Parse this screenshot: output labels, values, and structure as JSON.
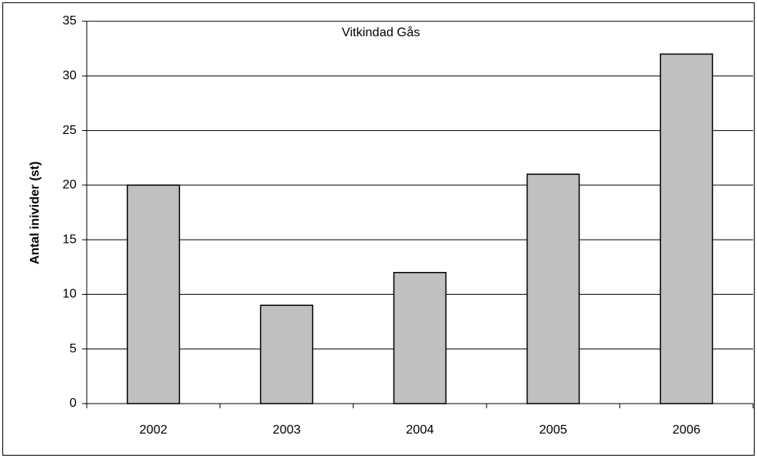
{
  "chart_data": {
    "type": "bar",
    "title": "Vitkindad Gås",
    "y_label": "Antal inivider (st)",
    "categories": [
      "2002",
      "2003",
      "2004",
      "2005",
      "2006"
    ],
    "values": [
      20,
      9,
      12,
      21,
      32
    ],
    "color": "#c0c0c0",
    "ylim": [
      0,
      35
    ],
    "yticks": [
      0,
      5,
      10,
      15,
      20,
      25,
      30,
      35
    ],
    "grid": true
  }
}
